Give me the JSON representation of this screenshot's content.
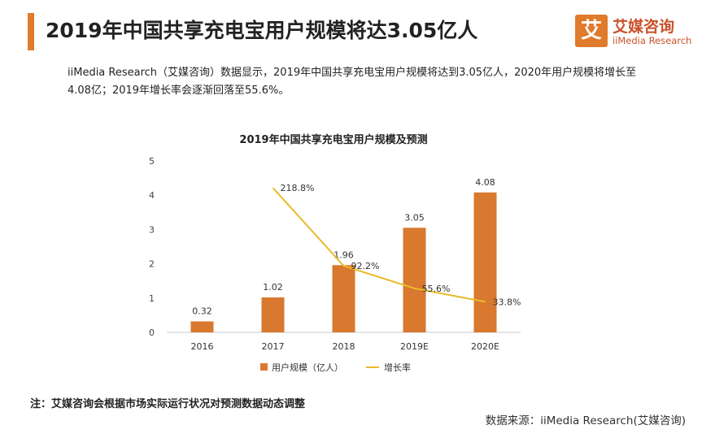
{
  "header": {
    "title": "2019年中国共享充电宝用户规模将达3.05亿人",
    "logo_mark": "艾",
    "logo_cn": "艾媒咨询",
    "logo_en": "iiMedia Research"
  },
  "summary": "iiMedia Research（艾媒咨询）数据显示，2019年中国共享充电宝用户规模将达到3.05亿人，2020年用户规模将增长至4.08亿；2019年增长率会逐渐回落至55.6%。",
  "chart_data": {
    "type": "bar",
    "title": "2019年中国共享充电宝用户规模及预测",
    "categories": [
      "2016",
      "2017",
      "2018",
      "2019E",
      "2020E"
    ],
    "yticks": [
      "0",
      "1",
      "2",
      "3",
      "4",
      "5"
    ],
    "ylim": [
      0,
      5
    ],
    "series": [
      {
        "name": "用户规模（亿人）",
        "kind": "bar",
        "color": "#d9782f",
        "values": [
          0.32,
          1.02,
          1.96,
          3.05,
          4.08
        ],
        "labels": [
          "0.32",
          "1.02",
          "1.96",
          "3.05",
          "4.08"
        ]
      },
      {
        "name": "增长率",
        "kind": "line",
        "color": "#e8bb2a",
        "values": [
          null,
          218.8,
          92.2,
          55.6,
          33.8
        ],
        "labels": [
          "",
          "218.8%",
          "92.2%",
          "55.6%",
          "33.8%"
        ]
      }
    ],
    "legend_position": "bottom",
    "grid": false
  },
  "footer": {
    "note": "注：艾媒咨询会根据市场实际运行状况对预测数据动态调整",
    "source": "数据来源：iiMedia Research(艾媒咨询)"
  }
}
